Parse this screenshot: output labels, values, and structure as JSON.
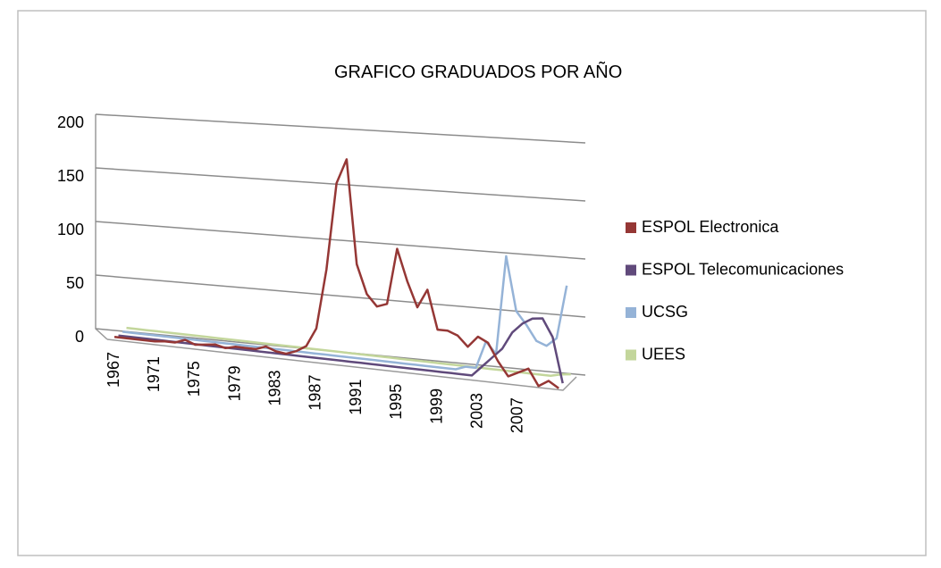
{
  "chart_data": {
    "type": "line3d",
    "title": "GRAFICO GRADUADOS POR AÑO",
    "categories": [
      "1967",
      null,
      null,
      null,
      "1971",
      null,
      null,
      null,
      "1975",
      null,
      null,
      null,
      "1979",
      null,
      null,
      null,
      "1983",
      null,
      null,
      null,
      "1987",
      null,
      null,
      null,
      "1991",
      null,
      null,
      null,
      "1995",
      null,
      null,
      null,
      "1999",
      null,
      null,
      null,
      "2003",
      null,
      null,
      null,
      "2007",
      null,
      null,
      null,
      null
    ],
    "ylim": [
      0,
      200
    ],
    "yticks": [
      0,
      50,
      100,
      150,
      200
    ],
    "grid": true,
    "legend": "right",
    "series": [
      {
        "name": "ESPOL Electronica",
        "color": "#953735",
        "values": [
          2,
          2,
          2,
          2,
          2,
          3,
          3,
          6,
          3,
          4,
          5,
          3,
          5,
          5,
          5,
          8,
          5,
          4,
          7,
          12,
          27,
          75,
          145,
          165,
          82,
          59,
          50,
          53,
          98,
          73,
          53,
          68,
          37,
          37,
          34,
          26,
          35,
          31,
          17,
          6,
          10,
          14,
          1,
          6,
          1
        ]
      },
      {
        "name": "ESPOL Telecomunicaciones",
        "color": "#604a7b",
        "values": [
          0,
          0,
          0,
          0,
          0,
          0,
          0,
          0,
          0,
          0,
          0,
          0,
          0,
          0,
          0,
          0,
          0,
          0,
          0,
          0,
          0,
          0,
          0,
          0,
          0,
          0,
          0,
          0,
          0,
          0,
          0,
          0,
          0,
          0,
          0,
          0,
          8,
          16,
          24,
          38,
          46,
          51,
          52,
          38,
          2
        ]
      },
      {
        "name": "UCSG",
        "color": "#95b3d7",
        "values": [
          0,
          0,
          0,
          0,
          0,
          0,
          0,
          0,
          0,
          0,
          0,
          0,
          0,
          0,
          0,
          0,
          0,
          0,
          0,
          0,
          0,
          0,
          0,
          0,
          0,
          0,
          0,
          0,
          0,
          0,
          0,
          0,
          0,
          0,
          3,
          3,
          25,
          16,
          95,
          52,
          42,
          30,
          27,
          34,
          77
        ]
      },
      {
        "name": "UEES",
        "color": "#c3d69b",
        "values": [
          0,
          0,
          0,
          0,
          0,
          0,
          0,
          0,
          0,
          0,
          0,
          0,
          0,
          0,
          0,
          0,
          0,
          0,
          0,
          0,
          0,
          0,
          0,
          0,
          0,
          0,
          0,
          0,
          0,
          0,
          0,
          0,
          0,
          0,
          0,
          0,
          0,
          0,
          0,
          0,
          0,
          0,
          0,
          2,
          3
        ]
      }
    ]
  }
}
